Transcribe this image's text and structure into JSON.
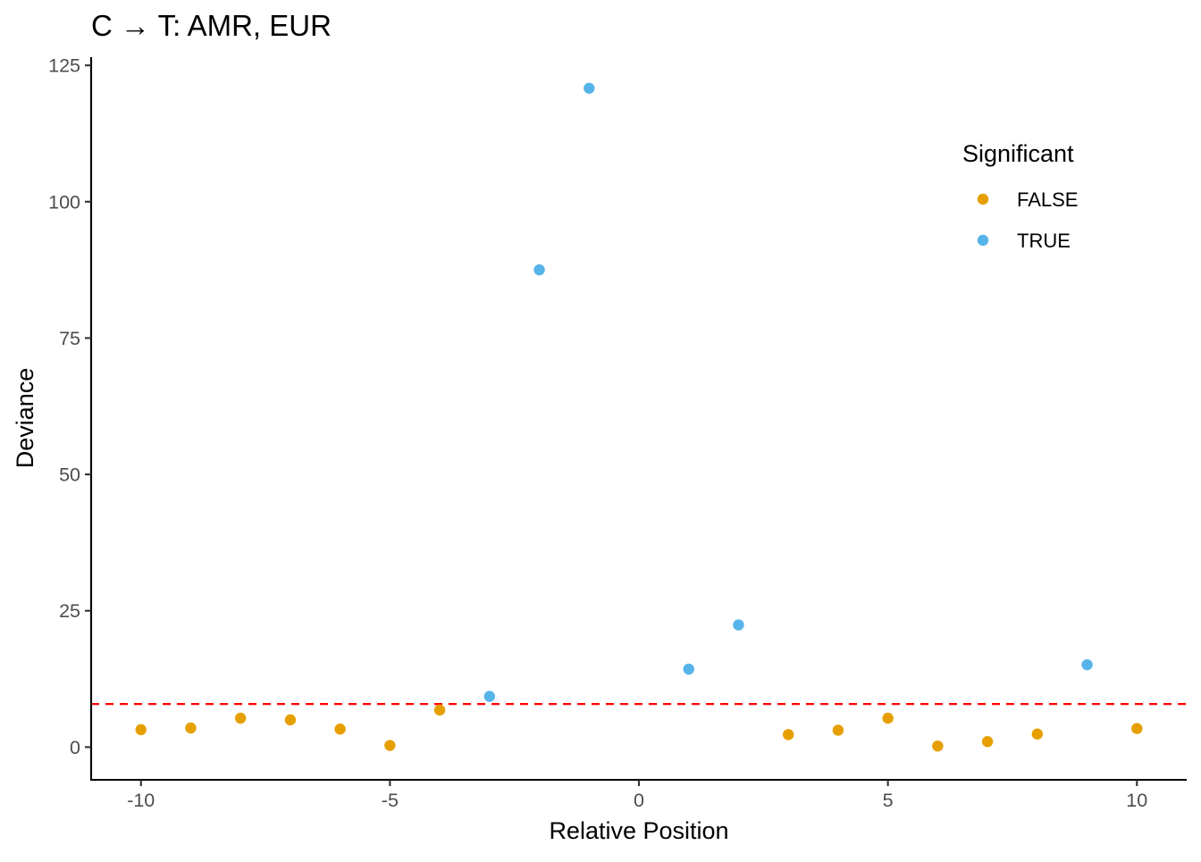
{
  "chart_data": {
    "type": "scatter",
    "title": "C → T: AMR, EUR",
    "xlabel": "Relative Position",
    "ylabel": "Deviance",
    "xlim": [
      -11,
      11
    ],
    "ylim": [
      -6,
      126.5
    ],
    "x_ticks": [
      -10,
      -5,
      0,
      5,
      10
    ],
    "x_tick_labels": [
      "-10",
      "-5",
      "0",
      "5",
      "10"
    ],
    "y_ticks": [
      0,
      25,
      50,
      75,
      100,
      125
    ],
    "y_tick_labels": [
      "0",
      "25",
      "50",
      "75",
      "100",
      "125"
    ],
    "grid": false,
    "threshold": {
      "y": 7.9,
      "color": "#ff0000",
      "style": "dashed"
    },
    "legend": {
      "title": "Significant",
      "position": "top-right",
      "entries": [
        {
          "label": "FALSE",
          "color": "#E69F00"
        },
        {
          "label": "TRUE",
          "color": "#56B4E9"
        }
      ]
    },
    "series": [
      {
        "name": "FALSE",
        "color": "#E69F00",
        "points": [
          {
            "x": -10,
            "y": 3.2
          },
          {
            "x": -9,
            "y": 3.5
          },
          {
            "x": -8,
            "y": 5.3
          },
          {
            "x": -7,
            "y": 5.0
          },
          {
            "x": -6,
            "y": 3.3
          },
          {
            "x": -5,
            "y": 0.3
          },
          {
            "x": -4,
            "y": 6.8
          },
          {
            "x": 3,
            "y": 2.3
          },
          {
            "x": 4,
            "y": 3.1
          },
          {
            "x": 5,
            "y": 5.3
          },
          {
            "x": 6,
            "y": 0.2
          },
          {
            "x": 7,
            "y": 1.0
          },
          {
            "x": 8,
            "y": 2.4
          },
          {
            "x": 10,
            "y": 3.4
          }
        ]
      },
      {
        "name": "TRUE",
        "color": "#56B4E9",
        "points": [
          {
            "x": -3,
            "y": 9.3
          },
          {
            "x": -2,
            "y": 87.5
          },
          {
            "x": -1,
            "y": 120.8
          },
          {
            "x": 1,
            "y": 14.3
          },
          {
            "x": 2,
            "y": 22.4
          },
          {
            "x": 9,
            "y": 15.1
          }
        ]
      }
    ]
  }
}
